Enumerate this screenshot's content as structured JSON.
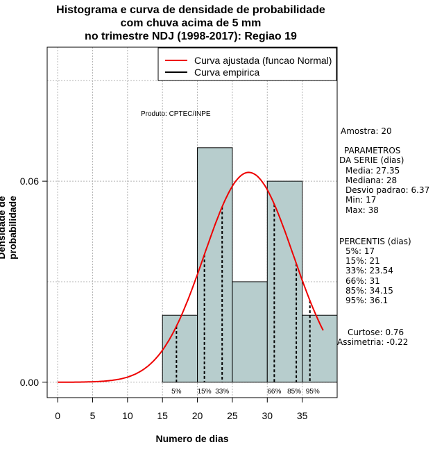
{
  "title_lines": [
    "Histograma e curva de densidade de probabilidade",
    "com chuva acima de 5 mm",
    "no trimestre NDJ (1998-2017): Regiao 19"
  ],
  "credit": "Produto: CPTEC/INPE",
  "legend": {
    "fitted": "Curva ajustada (funcao Normal)",
    "empirical": "Curva empirica",
    "fitted_color": "#ee0000",
    "empirical_color": "#000000"
  },
  "stats": {
    "sample": "Amostra: 20",
    "params_title_1": "PARAMETROS",
    "params_title_2": "DA SERIE (dias)",
    "media": "Media: 27.35",
    "mediana": "Mediana: 28",
    "desvio": "Desvio padrao: 6.37",
    "min": "Min: 17",
    "max": "Max: 38",
    "percentis_title": "PERCENTIS (dias)",
    "p5": "5%: 17",
    "p15": "15%: 21",
    "p33": "33%: 23.54",
    "p66": "66%: 31",
    "p85": "85%: 34.15",
    "p95": "95%: 36.1",
    "curtose": "Curtose: 0.76",
    "assimetria": "Assimetria: -0.22"
  },
  "chart_data": {
    "type": "bar",
    "title": "Histograma e curva de densidade de probabilidade com chuva acima de 5 mm no trimestre NDJ (1998-2017): Regiao 19",
    "xlabel": "Numero de dias",
    "ylabel": "Densidade de probabilidade",
    "xlim": [
      -1.5,
      40
    ],
    "ylim": [
      -0.0046,
      0.1
    ],
    "x_ticks": [
      0,
      5,
      10,
      15,
      20,
      25,
      30,
      35
    ],
    "y_ticks": [
      0.0,
      0.06
    ],
    "y_tick_labels": [
      "0.00",
      "0.06"
    ],
    "grid": true,
    "bin_width": 5,
    "bins": [
      {
        "start": 15,
        "end": 20,
        "density": 0.02
      },
      {
        "start": 20,
        "end": 25,
        "density": 0.07
      },
      {
        "start": 25,
        "end": 30,
        "density": 0.03
      },
      {
        "start": 30,
        "end": 35,
        "density": 0.06
      },
      {
        "start": 35,
        "end": 40,
        "density": 0.02
      }
    ],
    "fit": {
      "distribution": "normal",
      "mean": 27.35,
      "sd": 6.37,
      "x_range": [
        0,
        38
      ]
    },
    "percentiles": [
      {
        "label": "5%",
        "value": 17
      },
      {
        "label": "15%",
        "value": 21
      },
      {
        "label": "33%",
        "value": 23.54
      },
      {
        "label": "66%",
        "value": 31
      },
      {
        "label": "85%",
        "value": 34.15
      },
      {
        "label": "95%",
        "value": 36.1
      }
    ],
    "bar_color": "#b7cdcd",
    "curve_color": "#ee0000"
  }
}
